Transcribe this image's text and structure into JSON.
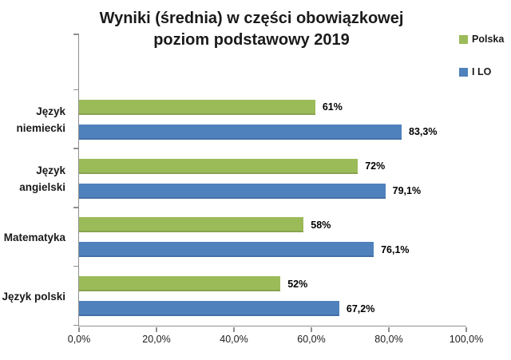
{
  "chart_data": {
    "type": "bar",
    "orientation": "horizontal",
    "title": "Wyniki (średnia) w części obowiązkowej poziom podstawowy 2019",
    "title_lines": [
      "Wyniki (średnia) w części obowiązkowej",
      "poziom podstawowy 2019"
    ],
    "categories": [
      "Język niemiecki",
      "Język angielski",
      "Matematyka",
      "Język polski"
    ],
    "category_labels": [
      "Język\nniemiecki",
      "Język\nangielski",
      "Matematyka",
      "Język polski"
    ],
    "series": [
      {
        "name": "Polska",
        "color": "#9BBB59",
        "values": [
          61,
          72,
          58,
          52
        ],
        "labels": [
          "61%",
          "72%",
          "58%",
          "52%"
        ]
      },
      {
        "name": "I LO",
        "color": "#4F81BD",
        "values": [
          83.3,
          79.1,
          76.1,
          67.2
        ],
        "labels": [
          "83,3%",
          "79,1%",
          "76,1%",
          "67,2%"
        ]
      }
    ],
    "xlim": [
      0,
      100
    ],
    "x_tick_labels": [
      "0,0%",
      "20,0%",
      "40,0%",
      "60,0%",
      "80,0%",
      "100,0%"
    ],
    "grid": false,
    "legend_position": "top-right",
    "axis_color": "#8f8f8f",
    "text_color": "#1a1a1a",
    "background_color": "#ffffff"
  }
}
